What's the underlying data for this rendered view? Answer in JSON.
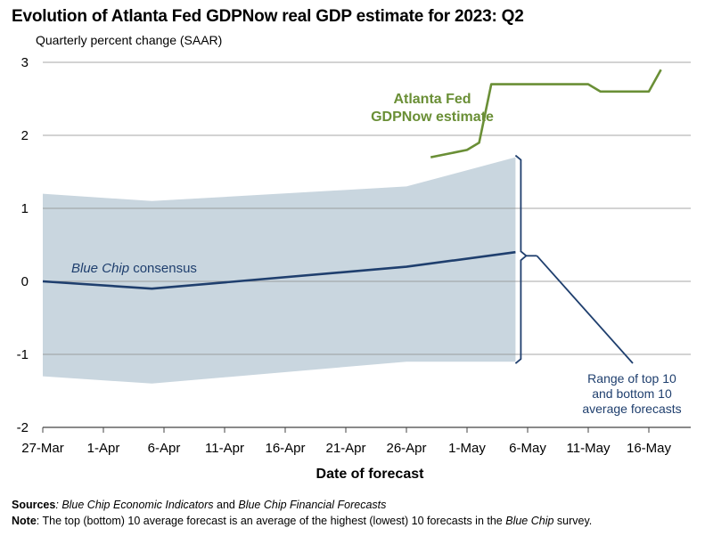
{
  "title": "Evolution of Atlanta Fed GDPNow real GDP estimate for 2023: Q2",
  "subtitle": "Quarterly percent change (SAAR)",
  "footer": {
    "sources_label": "Sources",
    "sources_text_1": "Blue Chip Economic Indicators",
    "sources_text_2": " and ",
    "sources_text_3": "Blue Chip Financial Forecasts",
    "note_label": "Note",
    "note_text_1": ": The top (bottom) 10 average forecast is an average of the highest (lowest) 10 forecasts in the ",
    "note_text_2": "Blue Chip",
    "note_text_3": " survey."
  },
  "chart_data": {
    "type": "line",
    "xlabel": "Date of forecast",
    "ylabel": "Quarterly percent change (SAAR)",
    "ylim": [
      -2,
      3
    ],
    "yticks": [
      "3",
      "2",
      "1",
      "0",
      "-1",
      "-2"
    ],
    "xticks": [
      "27-Mar",
      "1-Apr",
      "6-Apr",
      "11-Apr",
      "16-Apr",
      "21-Apr",
      "26-Apr",
      "1-May",
      "6-May",
      "11-May",
      "16-May"
    ],
    "grid": true,
    "series": [
      {
        "name": "Atlanta Fed GDPNow estimate",
        "color": "#6a8f36",
        "x": [
          "28-Apr",
          "1-May",
          "2-May",
          "3-May",
          "4-May",
          "5-May",
          "6-May",
          "7-May",
          "8-May",
          "9-May",
          "10-May",
          "11-May",
          "12-May",
          "13-May",
          "14-May",
          "15-May",
          "16-May",
          "17-May"
        ],
        "values": [
          1.7,
          1.8,
          1.9,
          2.7,
          2.7,
          2.7,
          2.7,
          2.7,
          2.7,
          2.7,
          2.7,
          2.7,
          2.6,
          2.6,
          2.6,
          2.6,
          2.6,
          2.9
        ]
      },
      {
        "name": "Blue Chip consensus",
        "color": "#1f3f6e",
        "x": [
          "27-Mar",
          "5-Apr",
          "12-Apr",
          "26-Apr",
          "5-May"
        ],
        "values": [
          0.0,
          -0.1,
          0.0,
          0.2,
          0.4
        ]
      }
    ],
    "band": {
      "name": "Range of top 10 and bottom 10 average forecasts",
      "color": "#c9d6df",
      "x": [
        "27-Mar",
        "5-Apr",
        "26-Apr",
        "5-May"
      ],
      "upper": [
        1.2,
        1.1,
        1.3,
        1.7
      ],
      "lower": [
        -1.3,
        -1.4,
        -1.1,
        -1.1
      ]
    },
    "annotations": {
      "gdpnow_label": [
        "Atlanta Fed",
        "GDPNow estimate"
      ],
      "consensus_label_italic": "Blue Chip",
      "consensus_label_rest": " consensus",
      "range_label": [
        "Range of top 10",
        "and bottom 10",
        "average forecasts"
      ]
    }
  }
}
